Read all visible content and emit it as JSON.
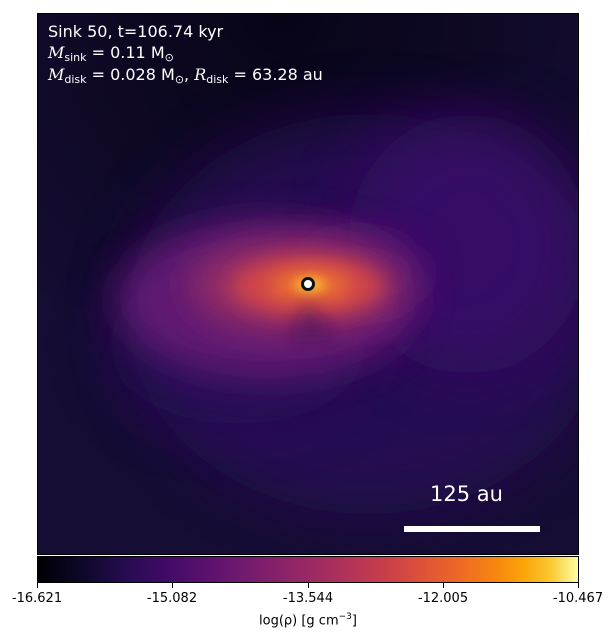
{
  "info": {
    "line1": "Sink 50, t=106.74 kyr",
    "m_sink_symbol": "M",
    "m_sink_sub": "sink",
    "m_sink_value": " = 0.11 M",
    "m_sink_unit_sub": "⊙",
    "m_disk_symbol": "M",
    "m_disk_sub": "disk",
    "m_disk_value": " = 0.028 M",
    "m_disk_unit_sub": "⊙",
    "r_disk_prefix": ", ",
    "r_disk_symbol": "R",
    "r_disk_sub": "disk",
    "r_disk_value": " = 63.28 au"
  },
  "scale_bar": {
    "label": "125 au"
  },
  "colorbar": {
    "colormap": "inferno",
    "ticks": [
      "-16.621",
      "-15.082",
      "-13.544",
      "-12.005",
      "-10.467"
    ],
    "label_prefix": "log(ρ) [g cm",
    "label_exp": "−3",
    "label_suffix": "]"
  },
  "colors": {
    "background": "#150d33",
    "sink_fill": "#ffffff",
    "sink_ring": "#111111"
  }
}
